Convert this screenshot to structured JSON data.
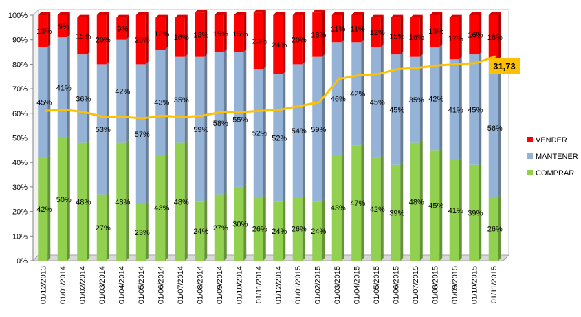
{
  "chart_data": {
    "type": "bar",
    "stacked": true,
    "categories": [
      "01/12/2013",
      "01/01/2014",
      "01/02/2014",
      "01/03/2014",
      "01/04/2014",
      "01/05/2014",
      "01/06/2014",
      "01/07/2014",
      "01/08/2014",
      "01/09/2014",
      "01/10/2014",
      "01/11/2014",
      "01/12/2014",
      "01/01/2015",
      "01/02/2015",
      "01/03/2015",
      "01/04/2015",
      "01/05/2015",
      "01/06/2015",
      "01/07/2015",
      "01/08/2015",
      "01/09/2015",
      "01/10/2015",
      "01/11/2015"
    ],
    "series": [
      {
        "name": "COMPRAR",
        "color": "#92d050",
        "values": [
          42,
          50,
          48,
          27,
          48,
          23,
          43,
          48,
          24,
          27,
          30,
          26,
          24,
          26,
          24,
          43,
          47,
          42,
          39,
          48,
          45,
          41,
          39,
          26
        ]
      },
      {
        "name": "MANTENER",
        "color": "#95b3d7",
        "values": [
          45,
          41,
          36,
          53,
          42,
          57,
          43,
          35,
          59,
          58,
          55,
          52,
          52,
          54,
          59,
          46,
          42,
          45,
          45,
          35,
          42,
          41,
          45,
          56
        ]
      },
      {
        "name": "VENDER",
        "color": "#ff0000",
        "values": [
          13,
          9,
          15,
          20,
          9,
          20,
          13,
          16,
          18,
          15,
          15,
          23,
          24,
          20,
          18,
          11,
          11,
          12,
          15,
          16,
          13,
          17,
          16,
          18
        ]
      }
    ],
    "line": {
      "color": "#ffc000",
      "values": [
        61,
        61.5,
        60.5,
        58.5,
        58.5,
        58,
        59,
        58.5,
        59,
        60.5,
        60.5,
        61,
        61.5,
        63,
        64.5,
        74,
        75.5,
        76,
        78,
        78.5,
        79.5,
        80,
        80.5,
        83.2
      ]
    },
    "callout": {
      "text": "31,73",
      "color": "#ffc000"
    },
    "ylim": [
      0,
      100
    ],
    "yticks": [
      "0%",
      "10%",
      "20%",
      "30%",
      "40%",
      "50%",
      "60%",
      "70%",
      "80%",
      "90%",
      "100%"
    ],
    "legend": {
      "position": "right",
      "order": [
        "VENDER",
        "MANTENER",
        "COMPRAR"
      ]
    },
    "grid": false
  }
}
